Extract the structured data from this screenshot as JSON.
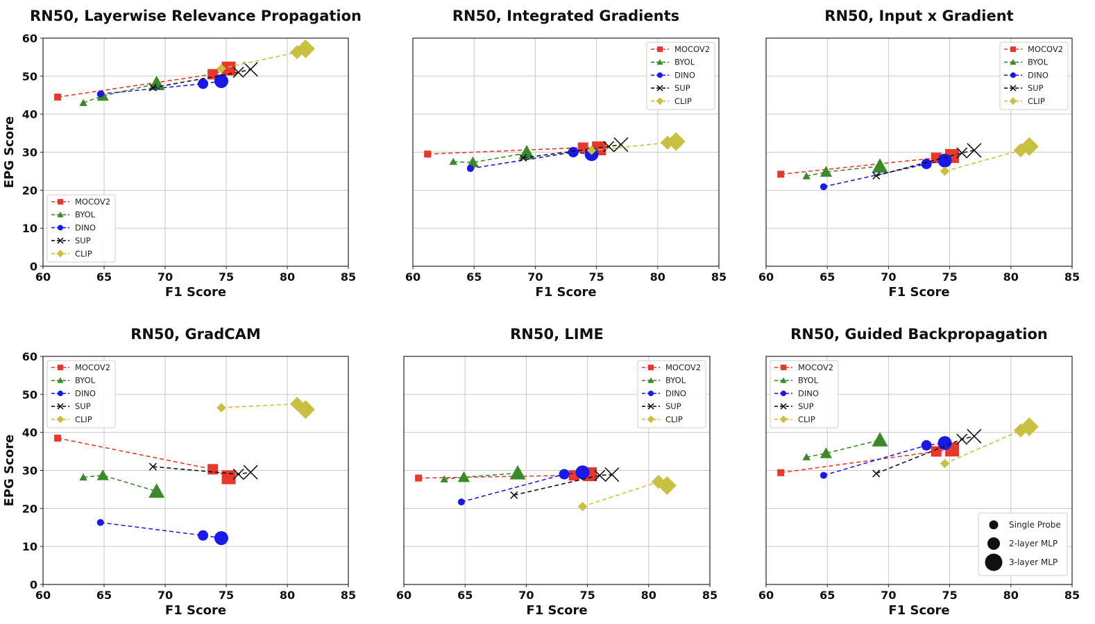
{
  "colors": {
    "MOCOV2": "#e8382b",
    "BYOL": "#3a8a2a",
    "DINO": "#1a1ae6",
    "SUP": "#111111",
    "CLIP": "#c8c040"
  },
  "markers": {
    "MOCOV2": "square",
    "BYOL": "triangle",
    "DINO": "circle",
    "SUP": "x",
    "CLIP": "diamond"
  },
  "size_legend": [
    "Single Probe",
    "2-layer MLP",
    "3-layer MLP"
  ],
  "chart_data": [
    {
      "type": "line",
      "title": "RN50, Layerwise Relevance Propagation",
      "xlabel": "F1 Score",
      "ylabel": "EPG Score",
      "xlim": [
        60,
        85
      ],
      "ylim": [
        0,
        60
      ],
      "xticks": [
        "60",
        "65",
        "70",
        "75",
        "80",
        "85"
      ],
      "yticks": [
        "0",
        "10",
        "20",
        "30",
        "40",
        "50",
        "60"
      ],
      "grid": true,
      "legend": "lower-left",
      "series": [
        {
          "name": "MOCOV2",
          "x": [
            61.2,
            73.9,
            75.2
          ],
          "y": [
            44.5,
            50.5,
            52.0
          ]
        },
        {
          "name": "BYOL",
          "x": [
            63.3,
            64.9,
            69.3
          ],
          "y": [
            43.0,
            44.8,
            48.0
          ]
        },
        {
          "name": "DINO",
          "x": [
            64.7,
            73.1,
            74.6
          ],
          "y": [
            45.3,
            48.0,
            48.7
          ]
        },
        {
          "name": "SUP",
          "x": [
            69.0,
            76.0,
            77.0
          ],
          "y": [
            47.0,
            51.0,
            51.8
          ]
        },
        {
          "name": "CLIP",
          "x": [
            74.6,
            80.8,
            81.5
          ],
          "y": [
            52.0,
            56.3,
            57.2
          ]
        }
      ]
    },
    {
      "type": "line",
      "title": "RN50, Integrated Gradients",
      "xlabel": "F1 Score",
      "ylabel": "",
      "xlim": [
        60,
        85
      ],
      "ylim": [
        0,
        60
      ],
      "xticks": [
        "60",
        "65",
        "70",
        "75",
        "80",
        "85"
      ],
      "yticks": [],
      "grid": true,
      "legend": "top-right",
      "series": [
        {
          "name": "MOCOV2",
          "x": [
            61.2,
            73.9,
            75.2
          ],
          "y": [
            29.5,
            31.2,
            31.0
          ]
        },
        {
          "name": "BYOL",
          "x": [
            63.3,
            64.9,
            69.3
          ],
          "y": [
            27.5,
            27.3,
            29.8
          ]
        },
        {
          "name": "DINO",
          "x": [
            64.7,
            73.1,
            74.6
          ],
          "y": [
            25.7,
            30.0,
            29.5
          ]
        },
        {
          "name": "SUP",
          "x": [
            69.0,
            76.0,
            77.0
          ],
          "y": [
            28.5,
            31.5,
            32.0
          ]
        },
        {
          "name": "CLIP",
          "x": [
            74.6,
            80.8,
            81.5
          ],
          "y": [
            30.5,
            32.5,
            32.8
          ]
        }
      ]
    },
    {
      "type": "line",
      "title": "RN50, Input x Gradient",
      "xlabel": "F1 Score",
      "ylabel": "",
      "xlim": [
        60,
        85
      ],
      "ylim": [
        0,
        60
      ],
      "xticks": [
        "60",
        "65",
        "70",
        "75",
        "80",
        "85"
      ],
      "yticks": [],
      "grid": true,
      "legend": "top-right",
      "series": [
        {
          "name": "MOCOV2",
          "x": [
            61.2,
            73.9,
            75.2
          ],
          "y": [
            24.2,
            28.5,
            29.0
          ]
        },
        {
          "name": "BYOL",
          "x": [
            63.3,
            64.9,
            69.3
          ],
          "y": [
            23.7,
            24.8,
            26.3
          ]
        },
        {
          "name": "DINO",
          "x": [
            64.7,
            73.1,
            74.6
          ],
          "y": [
            20.9,
            26.9,
            27.8
          ]
        },
        {
          "name": "SUP",
          "x": [
            69.0,
            76.0,
            77.0
          ],
          "y": [
            23.8,
            29.8,
            30.5
          ]
        },
        {
          "name": "CLIP",
          "x": [
            74.6,
            80.8,
            81.5
          ],
          "y": [
            25.0,
            30.5,
            31.5
          ]
        }
      ]
    },
    {
      "type": "line",
      "title": "RN50, GradCAM",
      "xlabel": "F1 Score",
      "ylabel": "EPG Score",
      "xlim": [
        60,
        85
      ],
      "ylim": [
        0,
        60
      ],
      "xticks": [
        "60",
        "65",
        "70",
        "75",
        "80",
        "85"
      ],
      "yticks": [
        "0",
        "10",
        "20",
        "30",
        "40",
        "50",
        "60"
      ],
      "grid": true,
      "legend": "top-left",
      "series": [
        {
          "name": "MOCOV2",
          "x": [
            61.2,
            73.9,
            75.2
          ],
          "y": [
            38.5,
            30.3,
            28.2
          ]
        },
        {
          "name": "BYOL",
          "x": [
            63.3,
            64.9,
            69.3
          ],
          "y": [
            28.2,
            28.7,
            24.5
          ]
        },
        {
          "name": "DINO",
          "x": [
            64.7,
            73.1,
            74.6
          ],
          "y": [
            16.3,
            12.9,
            12.2
          ]
        },
        {
          "name": "SUP",
          "x": [
            69.0,
            76.0,
            77.0
          ],
          "y": [
            31.0,
            29.0,
            29.5
          ]
        },
        {
          "name": "CLIP",
          "x": [
            74.6,
            80.8,
            81.5
          ],
          "y": [
            46.5,
            47.5,
            46.0
          ]
        }
      ]
    },
    {
      "type": "line",
      "title": "RN50, LIME",
      "xlabel": "F1 Score",
      "ylabel": "",
      "xlim": [
        60,
        85
      ],
      "ylim": [
        0,
        60
      ],
      "xticks": [
        "60",
        "65",
        "70",
        "75",
        "80",
        "85"
      ],
      "yticks": [],
      "grid": true,
      "legend": "top-right",
      "series": [
        {
          "name": "MOCOV2",
          "x": [
            61.2,
            73.9,
            75.2
          ],
          "y": [
            28.0,
            28.7,
            29.0
          ]
        },
        {
          "name": "BYOL",
          "x": [
            63.3,
            64.9,
            69.3
          ],
          "y": [
            27.7,
            28.2,
            29.3
          ]
        },
        {
          "name": "DINO",
          "x": [
            64.7,
            73.1,
            74.6
          ],
          "y": [
            21.7,
            29.0,
            29.5
          ]
        },
        {
          "name": "SUP",
          "x": [
            69.0,
            76.0,
            77.0
          ],
          "y": [
            23.5,
            28.7,
            28.9
          ]
        },
        {
          "name": "CLIP",
          "x": [
            74.6,
            80.8,
            81.5
          ],
          "y": [
            20.5,
            27.0,
            26.0
          ]
        }
      ]
    },
    {
      "type": "line",
      "title": "RN50, Guided Backpropagation",
      "xlabel": "F1 Score",
      "ylabel": "",
      "xlim": [
        60,
        85
      ],
      "ylim": [
        0,
        60
      ],
      "xticks": [
        "60",
        "65",
        "70",
        "75",
        "80",
        "85"
      ],
      "yticks": [],
      "grid": true,
      "legend": "top-left",
      "series": [
        {
          "name": "MOCOV2",
          "x": [
            61.2,
            73.9,
            75.2
          ],
          "y": [
            29.4,
            35.0,
            35.5
          ]
        },
        {
          "name": "BYOL",
          "x": [
            63.3,
            64.9,
            69.3
          ],
          "y": [
            33.5,
            34.5,
            38.0
          ]
        },
        {
          "name": "DINO",
          "x": [
            64.7,
            73.1,
            74.6
          ],
          "y": [
            28.7,
            36.6,
            37.2
          ]
        },
        {
          "name": "SUP",
          "x": [
            69.0,
            76.0,
            77.0
          ],
          "y": [
            29.2,
            38.2,
            39.0
          ]
        },
        {
          "name": "CLIP",
          "x": [
            74.6,
            80.8,
            81.5
          ],
          "y": [
            31.8,
            40.5,
            41.5
          ]
        }
      ]
    }
  ]
}
